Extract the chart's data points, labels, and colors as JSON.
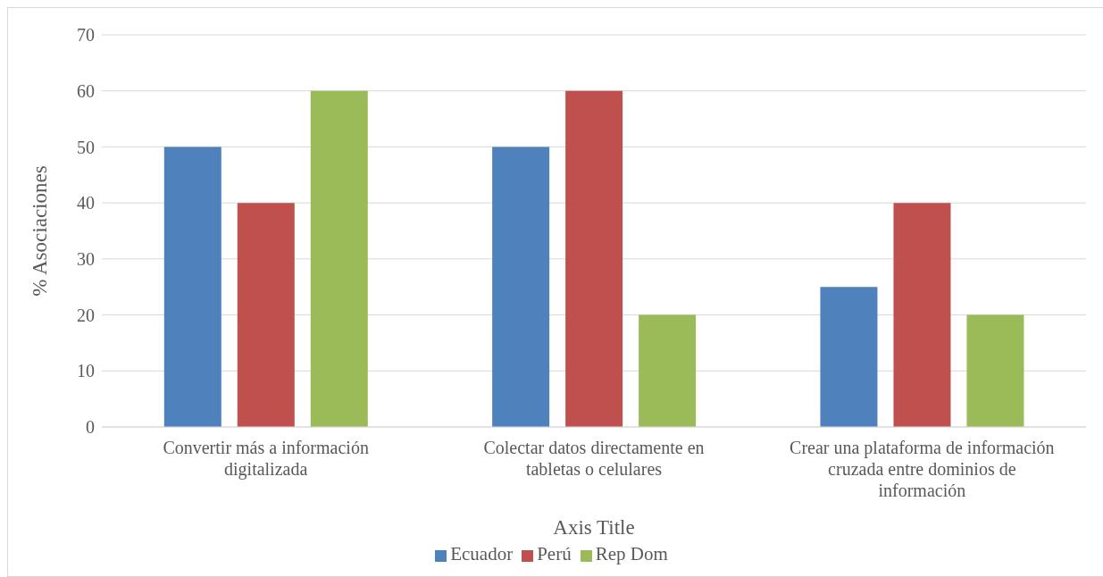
{
  "chart_data": {
    "type": "bar",
    "xlabel": "Axis Title",
    "ylabel": "% Asociaciones",
    "categories": [
      "Convertir más a información digitalizada",
      "Colectar datos directamente en tabletas o celulares",
      "Crear una plataforma de información cruzada entre dominios de información"
    ],
    "series": [
      {
        "name": "Ecuador",
        "color": "#4f81bd",
        "values": [
          50,
          50,
          25
        ]
      },
      {
        "name": "Perú",
        "color": "#c0504d",
        "values": [
          40,
          60,
          40
        ]
      },
      {
        "name": "Rep Dom",
        "color": "#9bbb59",
        "values": [
          60,
          20,
          20
        ]
      }
    ],
    "ylim": [
      0,
      70
    ],
    "yticks": [
      0,
      10,
      20,
      30,
      40,
      50,
      60,
      70
    ],
    "grid": "y",
    "legend": "bottom"
  }
}
